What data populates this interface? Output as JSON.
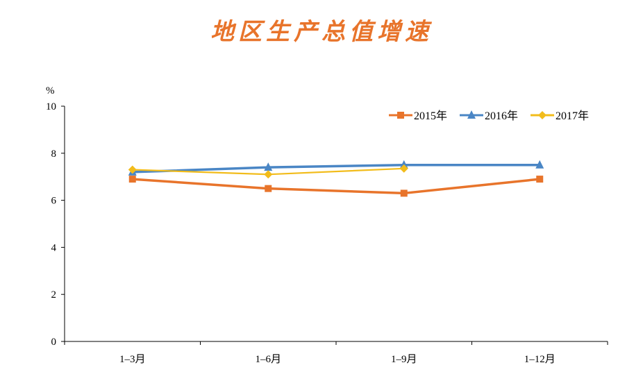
{
  "chart_data": {
    "type": "line",
    "title": "地区生产总值增速",
    "ylabel": "%",
    "xlabel": "",
    "ylim": [
      0,
      10
    ],
    "yticks": [
      0,
      2,
      4,
      6,
      8,
      10
    ],
    "categories": [
      "1–3月",
      "1–6月",
      "1–9月",
      "1–12月"
    ],
    "legend": "top-right",
    "grid": false,
    "series": [
      {
        "name": "2015年",
        "values": [
          6.9,
          6.5,
          6.3,
          6.9
        ],
        "color": "#E8742B",
        "marker": "square"
      },
      {
        "name": "2016年",
        "values": [
          7.2,
          7.4,
          7.5,
          7.5
        ],
        "color": "#4A86C5",
        "marker": "triangle"
      },
      {
        "name": "2017年",
        "values": [
          7.3,
          7.1,
          7.35,
          null
        ],
        "color": "#F2BC1B",
        "marker": "diamond"
      }
    ]
  }
}
